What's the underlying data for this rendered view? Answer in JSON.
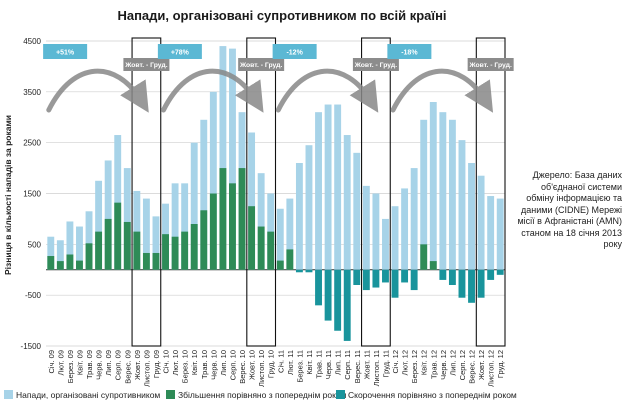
{
  "chart_data": {
    "type": "bar",
    "title": "Напади, організовані супротивником по всій країні",
    "ylabel": "Різниця в кількості нападів за роками",
    "ylim": [
      -1500,
      4500
    ],
    "yticks": [
      -1500,
      -500,
      500,
      1500,
      2500,
      3500,
      4500
    ],
    "categories": [
      "Січ. 09",
      "Лют. 09",
      "Берез. 09",
      "Квіт. 09",
      "Трав. 09",
      "Черв. 09",
      "Лип. 09",
      "Серп. 09",
      "Верес. 09",
      "Жовт. 09",
      "Листоп. 09",
      "Груд. 09",
      "Січ. 10",
      "Лют. 10",
      "Берез. 10",
      "Квіт. 10",
      "Трав. 10",
      "Черв. 10",
      "Лип. 10",
      "Серп. 10",
      "Верес. 10",
      "Жовт. 10",
      "Листоп. 10",
      "Груд. 10",
      "Січ. 11",
      "Лют. 11",
      "Берез. 11",
      "Квіт. 11",
      "Трав. 11",
      "Черв. 11",
      "Лип. 11",
      "Серп. 11",
      "Верес. 11",
      "Жовт. 11",
      "Листоп. 11",
      "Груд. 11",
      "Січ. 12",
      "Лют. 12",
      "Берез. 12",
      "Квіт. 12",
      "Трав. 12",
      "Черв. 12",
      "Лип. 12",
      "Серп. 12",
      "Верес. 12",
      "Жовт. 12",
      "Листоп. 12",
      "Груд. 12"
    ],
    "series": [
      {
        "name": "Напади, організовані супротивником",
        "color": "#a7d3e8",
        "values": [
          650,
          580,
          950,
          850,
          1150,
          1750,
          2150,
          2650,
          2000,
          1550,
          1400,
          1050,
          1300,
          1700,
          1700,
          2500,
          2950,
          3500,
          4400,
          4350,
          3100,
          2700,
          1900,
          1500,
          1200,
          1400,
          2100,
          2450,
          3100,
          3250,
          3250,
          2650,
          2300,
          1650,
          1500,
          1000,
          1250,
          1600,
          2000,
          2950,
          3300,
          3100,
          2950,
          2550,
          2100,
          1850,
          1450,
          1400
        ]
      },
      {
        "name": "Збільшення порівняно з попереднім роком",
        "color": "#2e8b57",
        "values": [
          270,
          170,
          300,
          180,
          520,
          750,
          1000,
          1320,
          940,
          750,
          330,
          330,
          700,
          650,
          750,
          900,
          1170,
          1500,
          2000,
          1700,
          2000,
          1250,
          850,
          750,
          180,
          400,
          0,
          0,
          0,
          0,
          0,
          0,
          0,
          0,
          0,
          0,
          0,
          0,
          0,
          500,
          170,
          0,
          0,
          0,
          0,
          0,
          0,
          0
        ]
      },
      {
        "name": "Скорочення порівняно з попереднім роком",
        "color": "#19949c",
        "values": [
          0,
          0,
          0,
          0,
          0,
          0,
          0,
          0,
          0,
          0,
          0,
          0,
          0,
          0,
          0,
          0,
          0,
          0,
          0,
          0,
          0,
          0,
          0,
          0,
          0,
          0,
          -50,
          -50,
          -700,
          -1000,
          -1200,
          -1400,
          -300,
          -400,
          -350,
          -250,
          -550,
          -250,
          -400,
          0,
          0,
          -200,
          -300,
          -550,
          -650,
          -550,
          -200,
          -100
        ]
      }
    ],
    "annotations": {
      "growth_labels": [
        "+51%",
        "+78%",
        "-12%",
        "-18%"
      ],
      "period_label": "Жовт. - Груд."
    },
    "legend_position": "bottom",
    "grid": true
  },
  "source_note": "Джерело: База даних об'єднаної системи обміну інформацією та даними (CIDNE) Мережі місії в Афганістані (AMN) станом на 18 січня 2013 року",
  "colors": {
    "grid": "#cfcfcf",
    "label_box": "#5bb8d4",
    "arrow": "#888888",
    "period_box": "#8c8c8c"
  }
}
